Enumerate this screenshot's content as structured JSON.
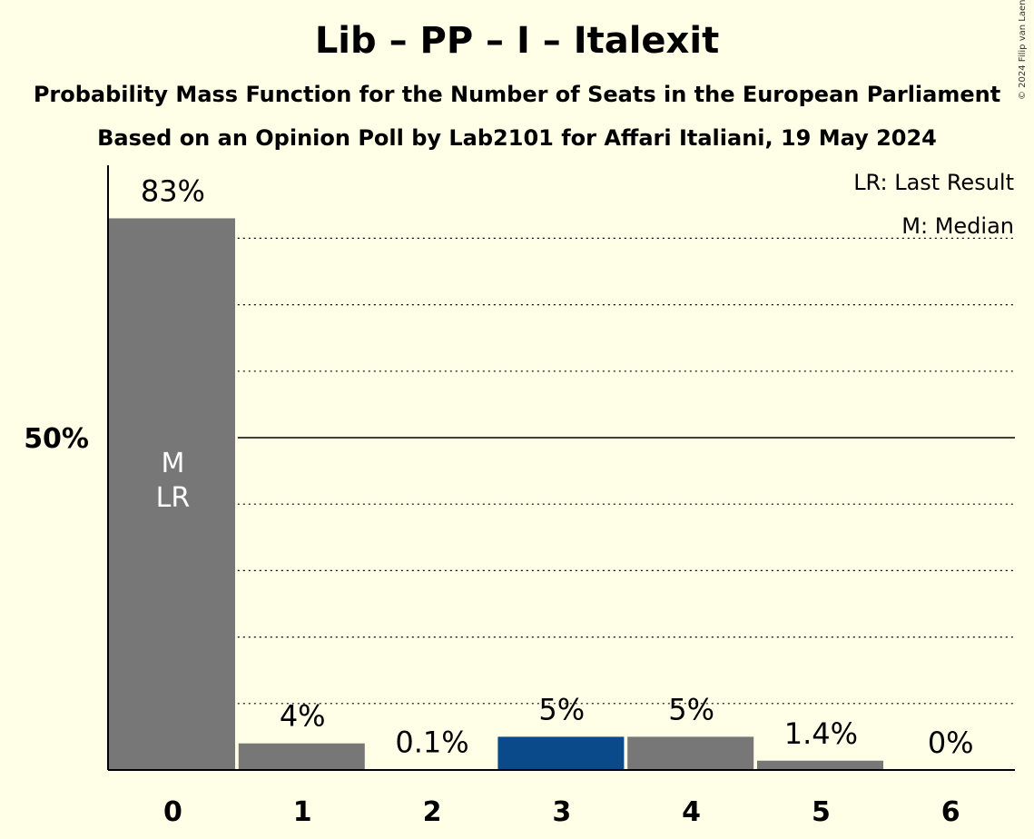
{
  "title": "Lib – PP – I – Italexit",
  "subtitle": "Probability Mass Function for the Number of Seats in the European Parliament",
  "source": "Based on an Opinion Poll by Lab2101 for Affari Italiani, 19 May 2024",
  "copyright": "© 2024 Filip van Laenen",
  "legend": {
    "last_result": "LR: Last Result",
    "median": "M: Median"
  },
  "colors": {
    "background": "#FFFEE6",
    "bar": "#777777",
    "highlight": "#0A4A8A",
    "inbar_text": "#FFFFFF"
  },
  "chart_data": {
    "type": "bar",
    "categories": [
      "0",
      "1",
      "2",
      "3",
      "4",
      "5",
      "6"
    ],
    "values": [
      83,
      4,
      0.1,
      5,
      5,
      1.4,
      0
    ],
    "value_labels": [
      "83%",
      "4%",
      "0.1%",
      "5%",
      "5%",
      "1.4%",
      "0%"
    ],
    "highlight_index": 3,
    "median_index": 0,
    "last_result_index": 0,
    "inbar_labels": [
      "M",
      "LR"
    ],
    "ylim": [
      0,
      90
    ],
    "y_ticks": [
      {
        "value": 50,
        "label": "50%"
      }
    ],
    "grid": true,
    "grid_step": 10,
    "legend_position": "top-right"
  }
}
